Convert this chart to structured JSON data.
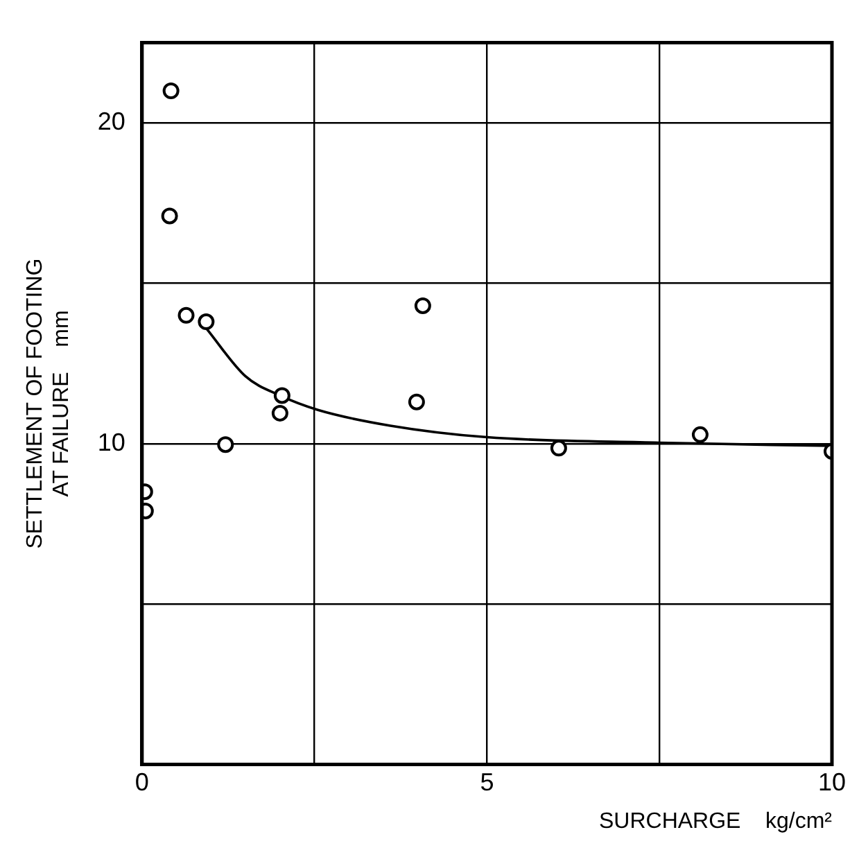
{
  "chart_data": {
    "type": "scatter",
    "xlabel": "SURCHARGE    kg/cm²",
    "ylabel": "SETTLEMENT OF FOOTING\nAT FAILURE    mm",
    "xlim": [
      0,
      10
    ],
    "ylim": [
      0,
      22.5
    ],
    "xticks": [
      0,
      {
        "value": 2.5,
        "label": null
      },
      5,
      {
        "value": 7.5,
        "label": null
      },
      10
    ],
    "yticks": [
      {
        "value": 0,
        "label": null
      },
      {
        "value": 5,
        "label": null
      },
      10,
      {
        "value": 15,
        "label": null
      },
      20
    ],
    "grid": true,
    "legend": false,
    "series": [
      {
        "type": "scatter",
        "color": "#000000",
        "marker": "circle",
        "x": [
          0.42,
          0.4,
          0.64,
          0.93,
          2.03,
          2.0,
          1.21,
          4.07,
          3.98,
          0.04,
          0.05,
          6.04,
          8.09,
          10
        ],
        "values": [
          21.0,
          17.1,
          14.0,
          13.8,
          11.5,
          10.95,
          9.97,
          14.3,
          11.3,
          8.5,
          7.9,
          9.86,
          10.28,
          9.76
        ]
      },
      {
        "type": "line",
        "color": "#000000",
        "marker": "none",
        "line_style": "solid",
        "x": [
          0.93,
          1.5,
          2.0,
          2.55,
          3.6,
          5.0,
          7.5,
          10
        ],
        "values": [
          13.6,
          12.1,
          11.5,
          11.05,
          10.56,
          10.2,
          10.03,
          9.93
        ]
      }
    ]
  }
}
